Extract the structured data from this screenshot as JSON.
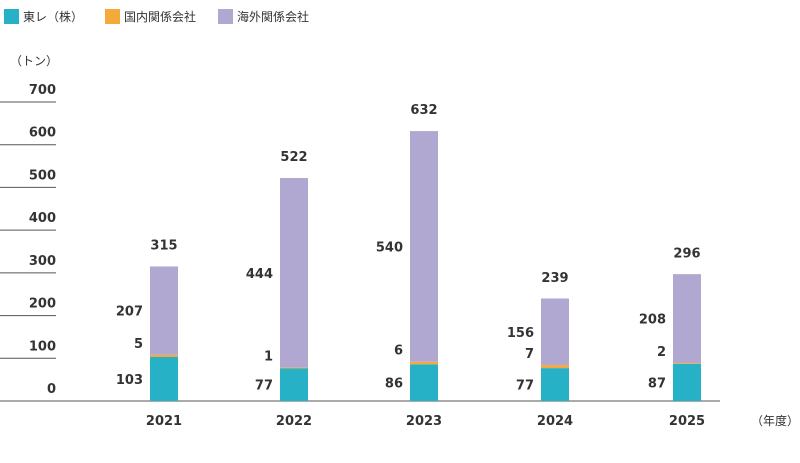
{
  "legend": {
    "items": [
      {
        "label": "東レ（株）",
        "color": "#26b1c6"
      },
      {
        "label": "国内関係会社",
        "color": "#f6a93b"
      },
      {
        "label": "海外関係会社",
        "color": "#b0a8d1"
      }
    ]
  },
  "y_unit": "（トン）",
  "x_unit": "（年度）",
  "chart_data": {
    "type": "bar",
    "stacked": true,
    "categories": [
      "2021",
      "2022",
      "2023",
      "2024",
      "2025"
    ],
    "series": [
      {
        "name": "東レ（株）",
        "values": [
          103,
          77,
          86,
          77,
          87
        ],
        "color": "#26b1c6"
      },
      {
        "name": "国内関係会社",
        "values": [
          5,
          1,
          6,
          7,
          2
        ],
        "color": "#f6a93b"
      },
      {
        "name": "海外関係会社",
        "values": [
          207,
          444,
          540,
          156,
          208
        ],
        "color": "#b0a8d1"
      }
    ],
    "totals": [
      315,
      522,
      632,
      239,
      296
    ],
    "ylim": [
      0,
      700
    ],
    "yticks": [
      0,
      100,
      200,
      300,
      400,
      500,
      600,
      700
    ],
    "grid": "y-axis tick marks only"
  }
}
